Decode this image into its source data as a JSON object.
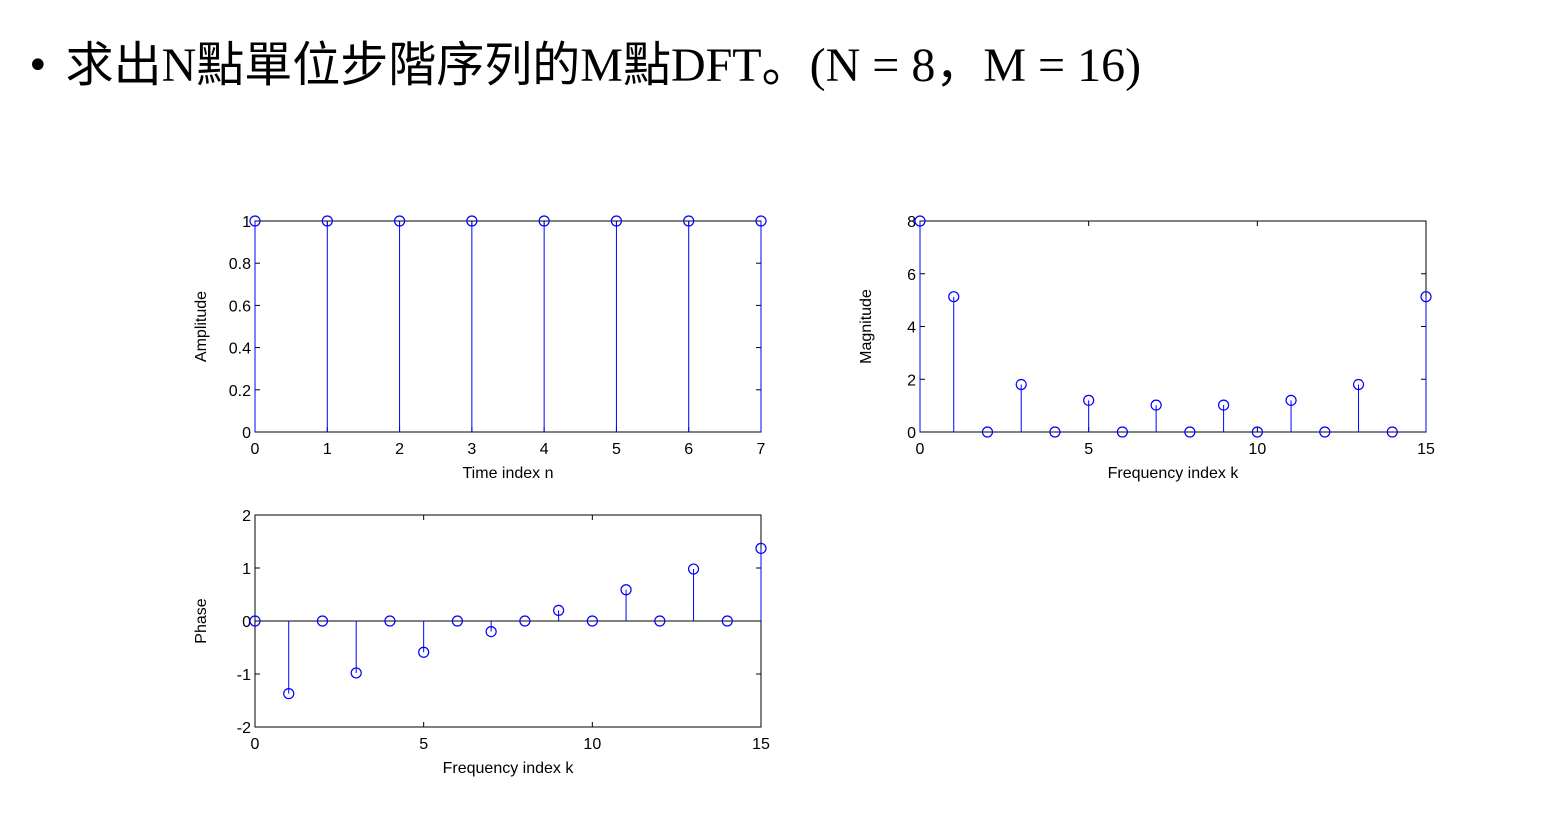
{
  "slide": {
    "bullet": "•",
    "title": "求出N點單位步階序列的M點DFT。(N = 8，M = 16)"
  },
  "colors": {
    "stem": "#0000ff",
    "axis": "#000000",
    "background": "#ffffff"
  },
  "chart_data": [
    {
      "type": "stem",
      "xlabel": "Time index n",
      "ylabel": "Amplitude",
      "xlim": [
        0,
        7
      ],
      "ylim": [
        0,
        1
      ],
      "xticks": [
        0,
        1,
        2,
        3,
        4,
        5,
        6,
        7
      ],
      "yticks": [
        0,
        0.2,
        0.4,
        0.6,
        0.8,
        1
      ],
      "ytick_labels": [
        "0",
        "0.2",
        "0.4",
        "0.6",
        "0.8",
        "1"
      ],
      "x": [
        0,
        1,
        2,
        3,
        4,
        5,
        6,
        7
      ],
      "y": [
        1,
        1,
        1,
        1,
        1,
        1,
        1,
        1
      ]
    },
    {
      "type": "stem",
      "xlabel": "Frequency index k",
      "ylabel": "Magnitude",
      "xlim": [
        0,
        15
      ],
      "ylim": [
        0,
        8
      ],
      "xticks": [
        0,
        5,
        10,
        15
      ],
      "yticks": [
        0,
        2,
        4,
        6,
        8
      ],
      "ytick_labels": [
        "0",
        "2",
        "4",
        "6",
        "8"
      ],
      "x": [
        0,
        1,
        2,
        3,
        4,
        5,
        6,
        7,
        8,
        9,
        10,
        11,
        12,
        13,
        14,
        15
      ],
      "y": [
        8,
        5.13,
        0,
        1.8,
        0,
        1.2,
        0,
        1.02,
        0,
        1.02,
        0,
        1.2,
        0,
        1.8,
        0,
        5.13
      ]
    },
    {
      "type": "stem",
      "xlabel": "Frequency index k",
      "ylabel": "Phase",
      "xlim": [
        0,
        15
      ],
      "ylim": [
        -2,
        2
      ],
      "xticks": [
        0,
        5,
        10,
        15
      ],
      "yticks": [
        -2,
        -1,
        0,
        1,
        2
      ],
      "ytick_labels": [
        "-2",
        "-1",
        "0",
        "1",
        "2"
      ],
      "x": [
        0,
        1,
        2,
        3,
        4,
        5,
        6,
        7,
        8,
        9,
        10,
        11,
        12,
        13,
        14,
        15
      ],
      "y": [
        0,
        -1.37,
        0,
        -0.98,
        0,
        -0.59,
        0,
        -0.2,
        0,
        0.2,
        0,
        0.59,
        0,
        0.98,
        0,
        1.37
      ]
    }
  ]
}
